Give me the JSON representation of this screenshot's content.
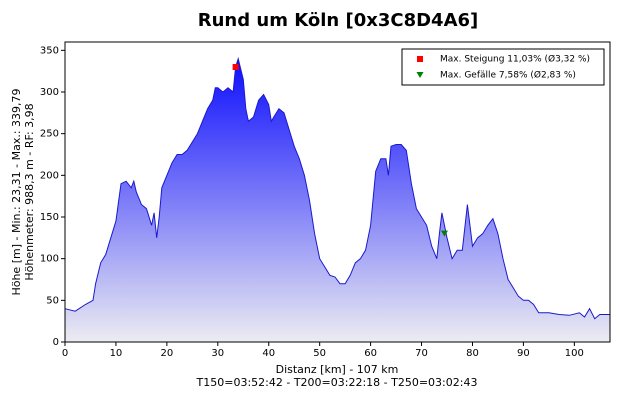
{
  "chart_data": {
    "type": "area",
    "title": "Rund um Köln [0x3C8D4A6]",
    "ylabel": [
      "Höhe [m] - Min.: 23,31 - Max.: 339,79",
      "Höhenmeter: 988,3 m - RF: 3,98"
    ],
    "xlabel": "Distanz [km] - 107 km",
    "subtitle": "T150=03:52:42 - T200=03:22:18 - T250=03:02:43",
    "color": "#0000ff",
    "line_color": "#1a1acc",
    "xlim": [
      0,
      107
    ],
    "ylim": [
      0,
      360
    ],
    "xticks": [
      0,
      10,
      20,
      30,
      40,
      50,
      60,
      70,
      80,
      90,
      100
    ],
    "yticks": [
      0,
      50,
      100,
      150,
      200,
      250,
      300,
      350
    ],
    "grid": false,
    "legend": "top-right",
    "x": [
      0,
      2,
      4,
      5.5,
      6,
      7,
      8,
      9,
      10,
      11,
      12,
      13,
      13.5,
      14,
      15,
      16,
      17,
      17.5,
      18,
      18.5,
      19,
      20,
      21,
      22,
      23,
      24,
      25,
      26,
      27,
      28,
      29,
      29.5,
      30,
      31,
      32,
      33,
      33.5,
      34,
      35,
      35.5,
      36,
      37,
      38,
      39,
      40,
      40.5,
      41,
      42,
      43,
      44,
      45,
      46,
      47,
      48,
      49,
      50,
      51,
      52,
      53,
      54,
      55,
      56,
      57,
      58,
      59,
      60,
      61,
      62,
      63,
      63.5,
      64,
      65,
      66,
      67,
      68,
      69,
      70,
      71,
      72,
      73,
      73.5,
      74,
      75,
      76,
      77,
      78,
      79,
      80,
      81,
      82,
      83,
      84,
      85,
      86,
      87,
      88,
      89,
      90,
      91,
      92,
      93,
      95,
      97,
      99,
      101,
      102,
      103,
      104,
      105,
      107
    ],
    "values": [
      40,
      37,
      45,
      50,
      70,
      95,
      105,
      125,
      145,
      190,
      193,
      185,
      193,
      180,
      165,
      160,
      140,
      155,
      125,
      150,
      185,
      200,
      215,
      225,
      225,
      230,
      240,
      250,
      265,
      280,
      290,
      305,
      305,
      300,
      305,
      300,
      330,
      340,
      315,
      280,
      265,
      270,
      290,
      297,
      285,
      265,
      270,
      280,
      275,
      255,
      235,
      220,
      200,
      170,
      130,
      100,
      90,
      80,
      78,
      70,
      70,
      80,
      95,
      100,
      110,
      140,
      205,
      220,
      220,
      200,
      235,
      237,
      237,
      230,
      190,
      160,
      150,
      140,
      115,
      100,
      130,
      155,
      125,
      100,
      110,
      110,
      165,
      115,
      125,
      130,
      140,
      148,
      130,
      100,
      75,
      65,
      55,
      50,
      50,
      45,
      35,
      35,
      33,
      32,
      35,
      30,
      40,
      28,
      33,
      33
    ],
    "markers": [
      {
        "label": "Max. Steigung 11,03% (Ø3,32 %)",
        "x": 33.5,
        "y": 330,
        "color": "#ff0000",
        "shape": "square"
      },
      {
        "label": "Max. Gefälle 7,58% (Ø2,83 %)",
        "x": 74.5,
        "y": 130,
        "color": "#008000",
        "shape": "triangle-down"
      }
    ]
  }
}
